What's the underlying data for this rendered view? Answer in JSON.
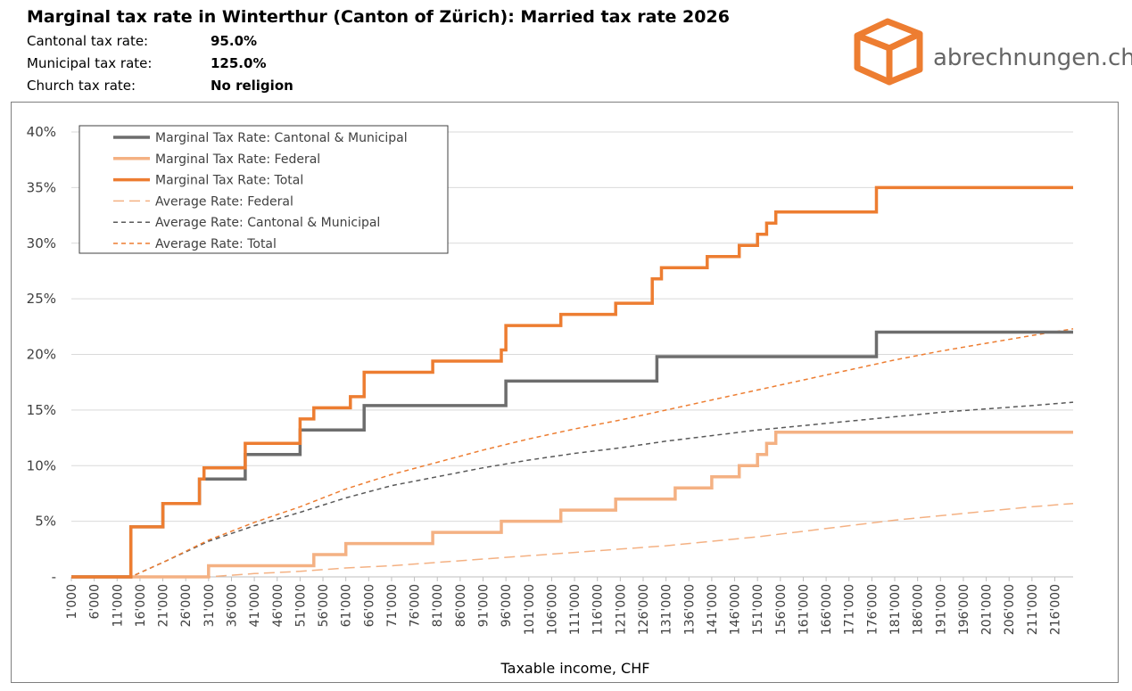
{
  "header": {
    "title": "Marginal tax rate in Winterthur (Canton of Zürich): Married tax rate 2026",
    "info": [
      {
        "label": "Cantonal tax rate:",
        "value": "95.0%"
      },
      {
        "label": "Municipal tax rate:",
        "value": "125.0%"
      },
      {
        "label": "Church tax rate:",
        "value": "No religion"
      }
    ]
  },
  "logo": {
    "text": "abrechnungen.ch",
    "color": "#ed7d31",
    "icon": "box-icon"
  },
  "chart_data": {
    "type": "line",
    "xlabel": "Taxable income, CHF",
    "ylabel": "",
    "x_ticks": [
      "1'000",
      "6'000",
      "11'000",
      "16'000",
      "21'000",
      "26'000",
      "31'000",
      "36'000",
      "41'000",
      "46'000",
      "51'000",
      "56'000",
      "61'000",
      "66'000",
      "71'000",
      "76'000",
      "81'000",
      "86'000",
      "91'000",
      "96'000",
      "101'000",
      "106'000",
      "111'000",
      "116'000",
      "121'000",
      "126'000",
      "131'000",
      "136'000",
      "141'000",
      "146'000",
      "151'000",
      "156'000",
      "161'000",
      "166'000",
      "171'000",
      "176'000",
      "181'000",
      "186'000",
      "191'000",
      "196'000",
      "201'000",
      "206'000",
      "211'000",
      "216'000"
    ],
    "xlim": [
      1000,
      220000
    ],
    "y_ticks": [
      "-",
      "5%",
      "10%",
      "15%",
      "20%",
      "25%",
      "30%",
      "35%",
      "40%"
    ],
    "ylim": [
      0,
      40
    ],
    "grid": true,
    "legend_position": "top-left",
    "series": [
      {
        "name": "Marginal Tax Rate: Cantonal & Municipal",
        "color": "#6d6d6d",
        "style": "solid",
        "width": 3.5,
        "points": [
          [
            1000,
            0
          ],
          [
            14000,
            0
          ],
          [
            14000,
            4.5
          ],
          [
            21000,
            4.5
          ],
          [
            21000,
            6.6
          ],
          [
            29000,
            6.6
          ],
          [
            29000,
            8.8
          ],
          [
            30000,
            8.8
          ],
          [
            30000,
            8.8
          ],
          [
            39000,
            8.8
          ],
          [
            39000,
            11.0
          ],
          [
            51000,
            11.0
          ],
          [
            51000,
            13.2
          ],
          [
            65000,
            13.2
          ],
          [
            65000,
            15.4
          ],
          [
            96000,
            15.4
          ],
          [
            96000,
            17.6
          ],
          [
            129000,
            17.6
          ],
          [
            129000,
            19.8
          ],
          [
            177000,
            19.8
          ],
          [
            177000,
            22.0
          ],
          [
            220000,
            22.0
          ]
        ]
      },
      {
        "name": "Marginal Tax Rate: Federal",
        "color": "#f4b183",
        "style": "solid",
        "width": 3.5,
        "points": [
          [
            1000,
            0
          ],
          [
            31000,
            0
          ],
          [
            31000,
            1.0
          ],
          [
            54000,
            1.0
          ],
          [
            54000,
            2.0
          ],
          [
            61000,
            2.0
          ],
          [
            61000,
            3.0
          ],
          [
            80000,
            3.0
          ],
          [
            80000,
            4.0
          ],
          [
            95000,
            4.0
          ],
          [
            95000,
            5.0
          ],
          [
            108000,
            5.0
          ],
          [
            108000,
            6.0
          ],
          [
            120000,
            6.0
          ],
          [
            120000,
            7.0
          ],
          [
            133000,
            7.0
          ],
          [
            133000,
            8.0
          ],
          [
            141000,
            8.0
          ],
          [
            141000,
            9.0
          ],
          [
            147000,
            9.0
          ],
          [
            147000,
            10.0
          ],
          [
            151000,
            10.0
          ],
          [
            151000,
            11.0
          ],
          [
            153000,
            11.0
          ],
          [
            153000,
            12.0
          ],
          [
            155000,
            12.0
          ],
          [
            155000,
            13.0
          ],
          [
            220000,
            13.0
          ]
        ]
      },
      {
        "name": "Marginal Tax Rate: Total",
        "color": "#ed7d31",
        "style": "solid",
        "width": 3.5,
        "points": [
          [
            1000,
            0
          ],
          [
            14000,
            0
          ],
          [
            14000,
            4.5
          ],
          [
            21000,
            4.5
          ],
          [
            21000,
            6.6
          ],
          [
            29000,
            6.6
          ],
          [
            29000,
            8.8
          ],
          [
            30000,
            8.8
          ],
          [
            30000,
            9.8
          ],
          [
            39000,
            9.8
          ],
          [
            39000,
            12.0
          ],
          [
            51000,
            12.0
          ],
          [
            51000,
            14.2
          ],
          [
            54000,
            14.2
          ],
          [
            54000,
            15.2
          ],
          [
            62000,
            15.2
          ],
          [
            62000,
            16.2
          ],
          [
            65000,
            16.2
          ],
          [
            65000,
            18.4
          ],
          [
            80000,
            18.4
          ],
          [
            80000,
            19.4
          ],
          [
            95000,
            19.4
          ],
          [
            95000,
            20.4
          ],
          [
            96000,
            20.4
          ],
          [
            96000,
            22.6
          ],
          [
            108000,
            22.6
          ],
          [
            108000,
            23.6
          ],
          [
            120000,
            23.6
          ],
          [
            120000,
            24.6
          ],
          [
            128000,
            24.6
          ],
          [
            128000,
            26.8
          ],
          [
            129000,
            26.8
          ],
          [
            129000,
            26.8
          ],
          [
            130000,
            26.8
          ],
          [
            130000,
            27.8
          ],
          [
            140000,
            27.8
          ],
          [
            140000,
            28.8
          ],
          [
            147000,
            28.8
          ],
          [
            147000,
            29.8
          ],
          [
            151000,
            29.8
          ],
          [
            151000,
            30.8
          ],
          [
            153000,
            30.8
          ],
          [
            153000,
            31.8
          ],
          [
            155000,
            31.8
          ],
          [
            155000,
            32.8
          ],
          [
            177000,
            32.8
          ],
          [
            177000,
            35.0
          ],
          [
            220000,
            35.0
          ]
        ]
      },
      {
        "name": "Average Rate: Federal",
        "color": "#f4b183",
        "style": "longdash",
        "width": 1.5,
        "points": [
          [
            1000,
            0
          ],
          [
            31000,
            0
          ],
          [
            41000,
            0.3
          ],
          [
            51000,
            0.5
          ],
          [
            61000,
            0.8
          ],
          [
            71000,
            1.0
          ],
          [
            81000,
            1.3
          ],
          [
            91000,
            1.6
          ],
          [
            101000,
            1.9
          ],
          [
            111000,
            2.2
          ],
          [
            121000,
            2.5
          ],
          [
            131000,
            2.8
          ],
          [
            141000,
            3.2
          ],
          [
            151000,
            3.6
          ],
          [
            161000,
            4.1
          ],
          [
            171000,
            4.6
          ],
          [
            181000,
            5.1
          ],
          [
            191000,
            5.5
          ],
          [
            201000,
            5.9
          ],
          [
            211000,
            6.3
          ],
          [
            220000,
            6.6
          ]
        ]
      },
      {
        "name": "Average Rate: Cantonal & Municipal",
        "color": "#595959",
        "style": "dash",
        "width": 1.5,
        "points": [
          [
            1000,
            0
          ],
          [
            14000,
            0
          ],
          [
            21000,
            1.3
          ],
          [
            31000,
            3.2
          ],
          [
            41000,
            4.6
          ],
          [
            51000,
            5.8
          ],
          [
            61000,
            7.1
          ],
          [
            71000,
            8.2
          ],
          [
            81000,
            9.0
          ],
          [
            91000,
            9.8
          ],
          [
            101000,
            10.5
          ],
          [
            111000,
            11.1
          ],
          [
            121000,
            11.6
          ],
          [
            131000,
            12.2
          ],
          [
            141000,
            12.7
          ],
          [
            151000,
            13.2
          ],
          [
            161000,
            13.6
          ],
          [
            171000,
            14.0
          ],
          [
            181000,
            14.4
          ],
          [
            191000,
            14.8
          ],
          [
            201000,
            15.1
          ],
          [
            211000,
            15.4
          ],
          [
            220000,
            15.7
          ]
        ]
      },
      {
        "name": "Average Rate: Total",
        "color": "#ed7d31",
        "style": "dash",
        "width": 1.5,
        "points": [
          [
            1000,
            0
          ],
          [
            14000,
            0
          ],
          [
            21000,
            1.3
          ],
          [
            31000,
            3.3
          ],
          [
            41000,
            4.9
          ],
          [
            51000,
            6.3
          ],
          [
            61000,
            7.9
          ],
          [
            71000,
            9.2
          ],
          [
            81000,
            10.3
          ],
          [
            91000,
            11.4
          ],
          [
            101000,
            12.4
          ],
          [
            111000,
            13.3
          ],
          [
            121000,
            14.1
          ],
          [
            131000,
            15.0
          ],
          [
            141000,
            15.9
          ],
          [
            151000,
            16.8
          ],
          [
            161000,
            17.7
          ],
          [
            171000,
            18.6
          ],
          [
            181000,
            19.5
          ],
          [
            191000,
            20.3
          ],
          [
            201000,
            21.0
          ],
          [
            211000,
            21.7
          ],
          [
            220000,
            22.3
          ]
        ]
      }
    ]
  }
}
